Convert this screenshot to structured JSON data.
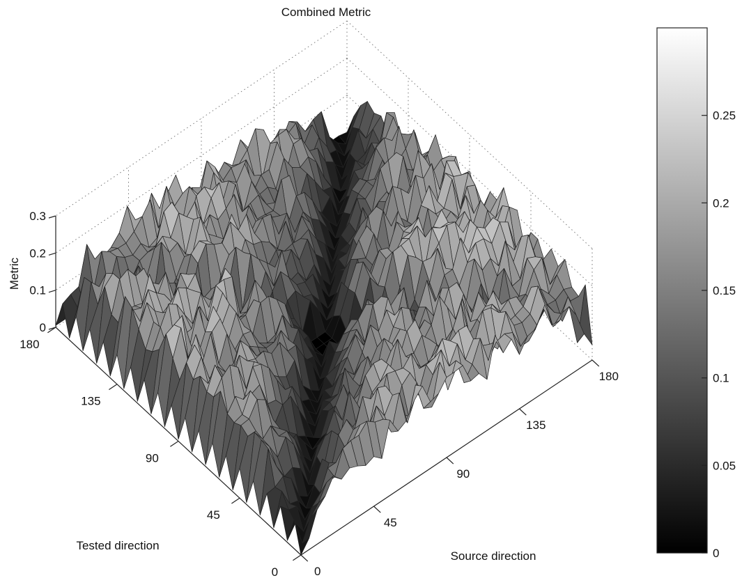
{
  "chart_data": {
    "type": "surface",
    "title": "Combined Metric",
    "xlabel": "Source direction",
    "ylabel": "Tested direction",
    "zlabel": "Metric",
    "xlim": [
      0,
      180
    ],
    "ylim": [
      0,
      180
    ],
    "zlim": [
      0,
      0.3
    ],
    "xticks": [
      "0",
      "45",
      "90",
      "135",
      "180"
    ],
    "yticks": [
      "0",
      "45",
      "90",
      "135",
      "180"
    ],
    "zticks": [
      "0",
      "0.1",
      "0.2",
      "0.3"
    ],
    "grid": true,
    "grid_step": 5,
    "description_values": {
      "diagonal_metric": 0,
      "corner_ridge_metric": 0.1,
      "plateau_metric": 0.19
    },
    "colorbar": {
      "colormap": "gray",
      "range": [
        0,
        0.3
      ],
      "ticks": [
        "0",
        "0.05",
        "0.1",
        "0.15",
        "0.2",
        "0.25"
      ]
    }
  }
}
